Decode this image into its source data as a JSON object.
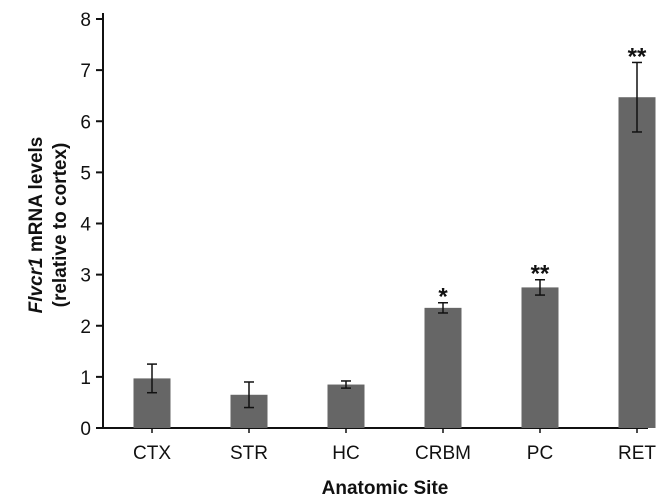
{
  "chart_data": {
    "type": "bar",
    "title": "",
    "categories": [
      "CTX",
      "STR",
      "HC",
      "CRBM",
      "PC",
      "RET"
    ],
    "values": [
      0.97,
      0.65,
      0.85,
      2.35,
      2.75,
      6.47
    ],
    "errors": [
      0.28,
      0.25,
      0.07,
      0.1,
      0.15,
      0.68
    ],
    "significance": [
      "",
      "",
      "",
      "*",
      "**",
      "**"
    ],
    "xlabel": "Anatomic Site",
    "ylabel_italic": "Flvcr1",
    "ylabel_rest": " mRNA levels",
    "ylabel_line2": "(relative to cortex)",
    "ylim": [
      0,
      8
    ],
    "yticks": [
      0,
      1,
      2,
      3,
      4,
      5,
      6,
      7,
      8
    ],
    "grid": false,
    "bar_color": "#666666"
  }
}
